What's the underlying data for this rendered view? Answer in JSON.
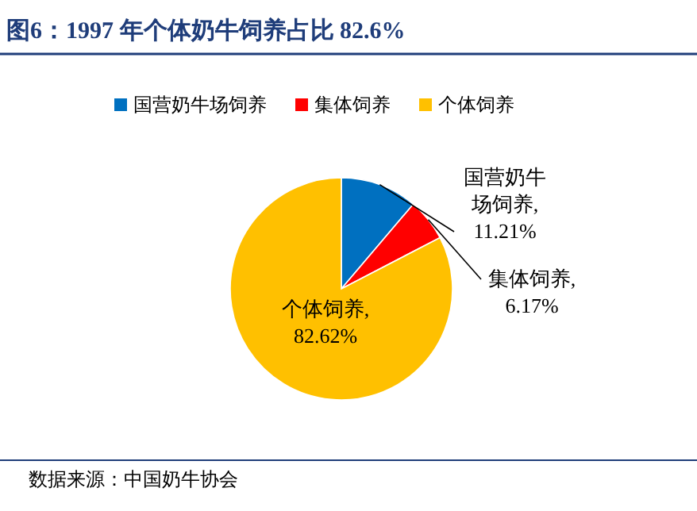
{
  "chart_data": {
    "type": "pie",
    "title": "图6：1997 年个体奶牛饲养占比 82.6%",
    "categories": [
      "国营奶牛场饲养",
      "集体饲养",
      "个体饲养"
    ],
    "values": [
      11.21,
      6.17,
      82.62
    ],
    "colors": [
      "#0070c0",
      "#ff0000",
      "#ffc000"
    ],
    "legend": "top",
    "value_labels": [
      "国营奶牛场饲养, 11.21%",
      "集体饲养, 6.17%",
      "个体饲养, 82.62%"
    ],
    "annotations": [
      "数据来源：中国奶牛协会"
    ]
  }
}
